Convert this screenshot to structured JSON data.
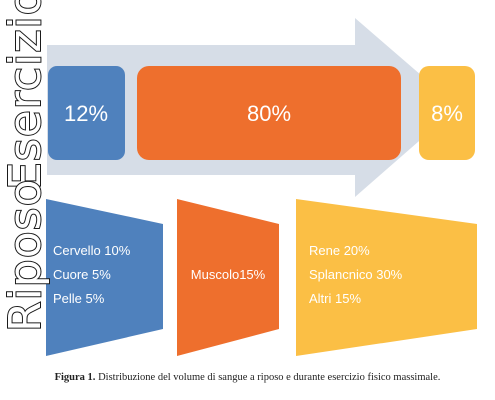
{
  "labels": {
    "exercise": "Esercizio",
    "rest": "Riposo"
  },
  "exercise": {
    "brain": "12%",
    "muscle": "80%",
    "other": "8%"
  },
  "rest": {
    "left": [
      "Cervello 10%",
      "Cuore 5%",
      "Pelle 5%"
    ],
    "middle": "Muscolo15%",
    "right": [
      "Rene 20%",
      "Splancnico 30%",
      "Altri 15%"
    ]
  },
  "caption": {
    "figure_label": "Figura 1.",
    "text": " Distribuzione del volume di sangue a riposo e durante esercizio fisico massimale."
  },
  "colors": {
    "blue": "#4f81bd",
    "orange": "#ee6f2d",
    "yellow": "#fbbf45",
    "arrow": "#d6dde7"
  }
}
